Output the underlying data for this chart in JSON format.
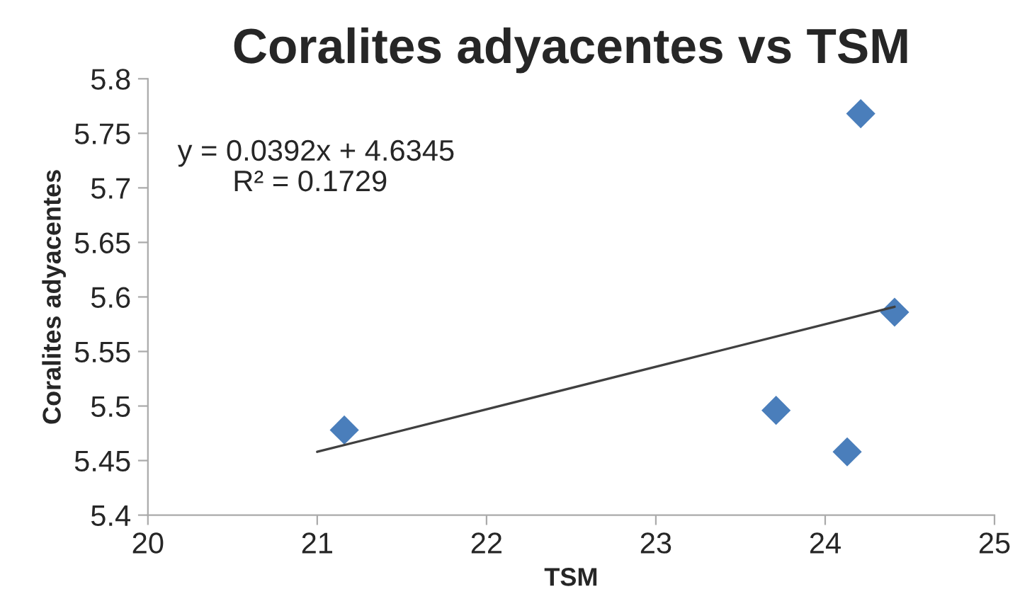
{
  "chart_data": {
    "type": "scatter",
    "title": "Coralites adyacentes vs TSM",
    "xlabel": "TSM",
    "ylabel": "Coralites adyacentes",
    "series": [
      {
        "color": "#4a7ebb",
        "x": [
          21.16,
          23.71,
          24.13,
          24.21,
          24.41
        ],
        "values": [
          5.478,
          5.496,
          5.458,
          5.768,
          5.586
        ],
        "marker": "diamond"
      },
      {
        "type": "line",
        "color": "#404040",
        "x": [
          21,
          24.41
        ],
        "values": [
          5.458,
          5.591
        ],
        "marker": "none",
        "line_style": "solid"
      }
    ],
    "annotations": [
      "y = 0.0392x + 4.6345",
      "R² = 0.1729"
    ],
    "xlim": [
      20,
      25
    ],
    "xticks": [
      20,
      21,
      22,
      23,
      24,
      25
    ],
    "ylim": [
      5.4,
      5.8
    ],
    "yticks": [
      5.4,
      5.45,
      5.5,
      5.55,
      5.6,
      5.65,
      5.7,
      5.75,
      5.8
    ],
    "grid": false,
    "legend": false
  }
}
